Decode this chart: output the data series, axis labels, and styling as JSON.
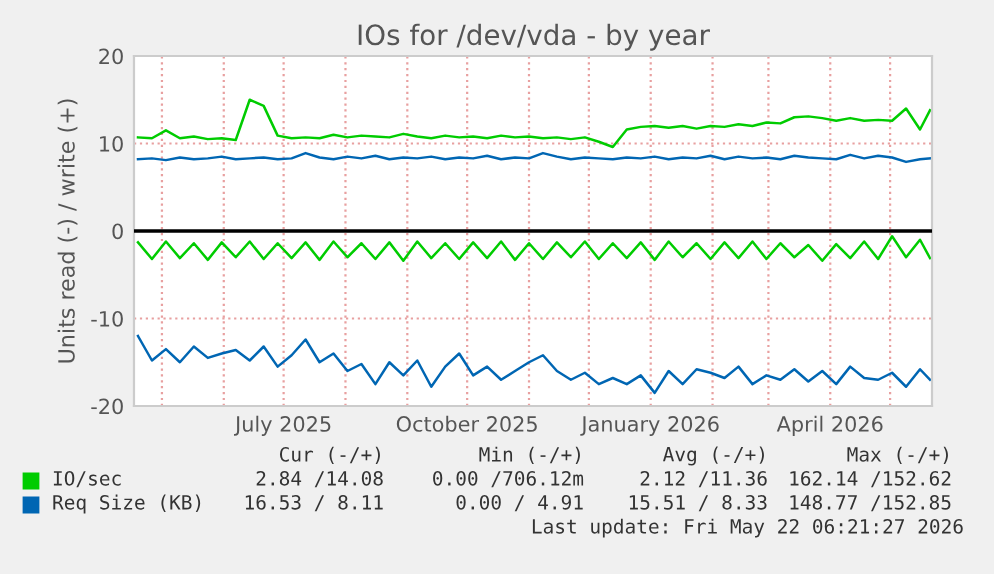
{
  "chart_data": {
    "type": "line",
    "title": "IOs for /dev/vda - by year",
    "ylabel": "Units read (-) / write (+)",
    "x": [
      "2025-04-19",
      "2025-04-26",
      "2025-05-03",
      "2025-05-10",
      "2025-05-17",
      "2025-05-24",
      "2025-05-31",
      "2025-06-07",
      "2025-06-14",
      "2025-06-21",
      "2025-06-28",
      "2025-07-05",
      "2025-07-12",
      "2025-07-19",
      "2025-07-26",
      "2025-08-02",
      "2025-08-09",
      "2025-08-16",
      "2025-08-23",
      "2025-08-30",
      "2025-09-06",
      "2025-09-13",
      "2025-09-20",
      "2025-09-27",
      "2025-10-04",
      "2025-10-11",
      "2025-10-18",
      "2025-10-25",
      "2025-11-01",
      "2025-11-08",
      "2025-11-15",
      "2025-11-22",
      "2025-11-29",
      "2025-12-06",
      "2025-12-13",
      "2025-12-20",
      "2025-12-27",
      "2026-01-03",
      "2026-01-10",
      "2026-01-17",
      "2026-01-24",
      "2026-01-31",
      "2026-02-07",
      "2026-02-14",
      "2026-02-21",
      "2026-02-28",
      "2026-03-07",
      "2026-03-14",
      "2026-03-21",
      "2026-03-28",
      "2026-04-04",
      "2026-04-11",
      "2026-04-18",
      "2026-04-25",
      "2026-05-02",
      "2026-05-09",
      "2026-05-16",
      "2026-05-21"
    ],
    "series": [
      {
        "name": "IO/sec",
        "color": "#00cc00",
        "values": [
          10.7,
          10.6,
          11.5,
          10.6,
          10.8,
          10.5,
          10.6,
          10.4,
          15.0,
          14.3,
          10.9,
          10.6,
          10.7,
          10.6,
          11.0,
          10.7,
          10.9,
          10.8,
          10.7,
          11.1,
          10.8,
          10.6,
          10.9,
          10.7,
          10.8,
          10.6,
          10.9,
          10.7,
          10.8,
          10.6,
          10.7,
          10.5,
          10.7,
          10.2,
          9.6,
          11.6,
          11.9,
          12.0,
          11.8,
          12.0,
          11.7,
          12.0,
          11.9,
          12.2,
          12.0,
          12.4,
          12.3,
          13.0,
          13.1,
          12.9,
          12.6,
          12.9,
          12.6,
          12.7,
          12.6,
          14.0,
          11.6,
          13.8
        ]
      },
      {
        "color": "#00cc00",
        "values": [
          -1.3,
          -3.2,
          -1.2,
          -3.1,
          -1.4,
          -3.3,
          -1.3,
          -3.0,
          -1.2,
          -3.2,
          -1.4,
          -3.1,
          -1.3,
          -3.3,
          -1.2,
          -3.0,
          -1.4,
          -3.2,
          -1.3,
          -3.4,
          -1.2,
          -3.1,
          -1.4,
          -3.2,
          -1.3,
          -3.1,
          -1.2,
          -3.3,
          -1.4,
          -3.2,
          -1.3,
          -3.0,
          -1.2,
          -3.2,
          -1.4,
          -3.1,
          -1.3,
          -3.3,
          -1.2,
          -3.0,
          -1.4,
          -3.2,
          -1.3,
          -3.1,
          -1.2,
          -3.2,
          -1.4,
          -3.0,
          -1.6,
          -3.4,
          -1.5,
          -3.1,
          -1.2,
          -3.2,
          -0.6,
          -3.0,
          -1.0,
          -3.1
        ]
      },
      {
        "name": "Req Size (KB)",
        "color": "#0066b3",
        "values": [
          8.2,
          8.3,
          8.1,
          8.4,
          8.2,
          8.3,
          8.5,
          8.2,
          8.3,
          8.4,
          8.2,
          8.3,
          8.9,
          8.4,
          8.2,
          8.5,
          8.3,
          8.6,
          8.2,
          8.4,
          8.3,
          8.5,
          8.2,
          8.4,
          8.3,
          8.6,
          8.2,
          8.4,
          8.3,
          8.9,
          8.5,
          8.2,
          8.4,
          8.3,
          8.2,
          8.4,
          8.3,
          8.5,
          8.2,
          8.4,
          8.3,
          8.6,
          8.2,
          8.5,
          8.3,
          8.4,
          8.2,
          8.6,
          8.4,
          8.3,
          8.2,
          8.7,
          8.3,
          8.6,
          8.4,
          7.9,
          8.2,
          8.3
        ]
      },
      {
        "color": "#0066b3",
        "values": [
          -12.0,
          -14.8,
          -13.5,
          -15.0,
          -13.2,
          -14.5,
          -14.0,
          -13.6,
          -14.8,
          -13.2,
          -15.5,
          -14.2,
          -12.4,
          -15.0,
          -14.0,
          -16.0,
          -15.2,
          -17.5,
          -15.0,
          -16.5,
          -14.8,
          -17.8,
          -15.5,
          -14.0,
          -16.5,
          -15.5,
          -17.0,
          -16.0,
          -15.0,
          -14.2,
          -16.0,
          -17.0,
          -16.2,
          -17.5,
          -16.8,
          -17.5,
          -16.5,
          -18.5,
          -16.0,
          -17.5,
          -15.8,
          -16.2,
          -16.8,
          -15.5,
          -17.5,
          -16.5,
          -17.0,
          -15.8,
          -17.2,
          -16.0,
          -17.5,
          -15.5,
          -16.8,
          -17.0,
          -16.2,
          -17.8,
          -15.8,
          -17.0
        ]
      }
    ],
    "xlim": [
      "2025-04-17",
      "2026-05-22"
    ],
    "xticks": [
      {
        "value": "2025-05-01",
        "label": null
      },
      {
        "value": "2025-06-01",
        "label": null
      },
      {
        "value": "2025-07-01",
        "label": "July 2025"
      },
      {
        "value": "2025-08-01",
        "label": null
      },
      {
        "value": "2025-09-01",
        "label": null
      },
      {
        "value": "2025-10-01",
        "label": "October 2025"
      },
      {
        "value": "2025-11-01",
        "label": null
      },
      {
        "value": "2025-12-01",
        "label": null
      },
      {
        "value": "2026-01-01",
        "label": "January 2026"
      },
      {
        "value": "2026-02-01",
        "label": null
      },
      {
        "value": "2026-03-01",
        "label": null
      },
      {
        "value": "2026-04-01",
        "label": "April 2026"
      },
      {
        "value": "2026-05-01",
        "label": null
      }
    ],
    "ylim": [
      -20,
      20
    ],
    "yticks": [
      -20,
      -10,
      0,
      10,
      20
    ],
    "grid": true,
    "legend": "bottom",
    "ref_lines": [
      {
        "axis": "y",
        "value": 0,
        "color": "#000000"
      }
    ],
    "annotations": [
      "Cur (-/+)",
      "Min (-/+)",
      "Avg (-/+)",
      "Max (-/+)",
      "2.84 /14.08",
      "0.00 /706.12m",
      "2.12 /11.36",
      "162.14 /152.62",
      "16.53 / 8.11",
      "0.00 / 4.91",
      "15.51 / 8.33",
      "148.77 /152.85",
      "Last update: Fri May 22 06:21:27 2026"
    ]
  }
}
